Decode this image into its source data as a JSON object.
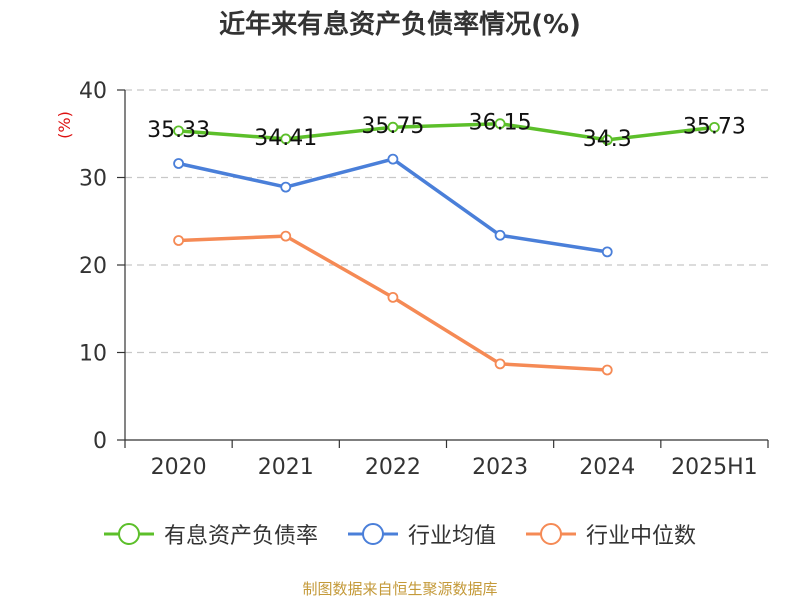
{
  "title": "近年来有息资产负债率情况(%)",
  "source": "制图数据来自恒生聚源数据库",
  "chart_data": {
    "type": "line",
    "title": "近年来有息资产负债率情况(%)",
    "ylabel": "(%)",
    "xlabel": "",
    "categories": [
      "2020",
      "2021",
      "2022",
      "2023",
      "2024",
      "2025H1"
    ],
    "ylim": [
      0,
      40
    ],
    "yticks": [
      0,
      10,
      20,
      30,
      40
    ],
    "grid": true,
    "legend_position": "bottom",
    "series": [
      {
        "name": "有息资产负债率",
        "color": "#5cbf2a",
        "values": [
          35.33,
          34.41,
          35.75,
          36.15,
          34.3,
          35.73
        ],
        "labels": [
          "35.33",
          "34.41",
          "35.75",
          "36.15",
          "34.3",
          "35.73"
        ]
      },
      {
        "name": "行业均值",
        "color": "#4a7fd9",
        "values": [
          31.6,
          28.9,
          32.1,
          23.4,
          21.5,
          null
        ]
      },
      {
        "name": "行业中位数",
        "color": "#f58a55",
        "values": [
          22.8,
          23.3,
          16.3,
          8.7,
          8.0,
          null
        ]
      }
    ]
  }
}
